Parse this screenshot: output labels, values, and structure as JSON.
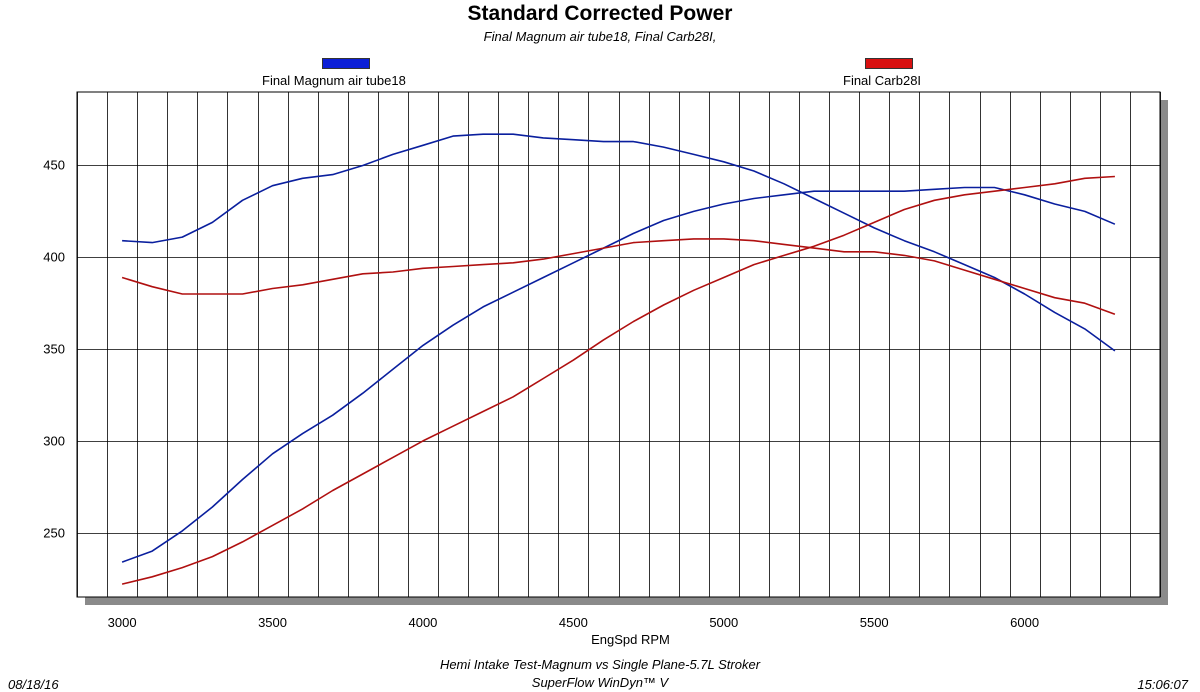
{
  "chart_data": {
    "type": "line",
    "title": "Standard Corrected Power",
    "subtitle": "Final Magnum air tube18, Final Carb28I,",
    "xlabel": "EngSpd RPM",
    "ylabel": "",
    "xlim": [
      2850,
      6450
    ],
    "ylim": [
      215,
      490
    ],
    "x_ticks": [
      3000,
      3500,
      4000,
      4500,
      5000,
      5500,
      6000
    ],
    "y_ticks": [
      250,
      300,
      350,
      400,
      450
    ],
    "x_gridlines": [
      2850,
      2950,
      3050,
      3150,
      3250,
      3350,
      3450,
      3550,
      3650,
      3750,
      3850,
      3950,
      4050,
      4150,
      4250,
      4350,
      4450,
      4550,
      4650,
      4750,
      4850,
      4950,
      5050,
      5150,
      5250,
      5350,
      5450,
      5550,
      5650,
      5750,
      5850,
      5950,
      6050,
      6150,
      6250,
      6350,
      6450
    ],
    "x": [
      3000,
      3100,
      3200,
      3300,
      3400,
      3500,
      3600,
      3700,
      3800,
      3900,
      4000,
      4100,
      4200,
      4300,
      4400,
      4500,
      4600,
      4700,
      4800,
      4900,
      5000,
      5100,
      5200,
      5300,
      5400,
      5500,
      5600,
      5700,
      5800,
      5900,
      6000,
      6100,
      6200,
      6300
    ],
    "series": [
      {
        "name": "Final Magnum air tube18",
        "legend": "Final Magnum air tube18",
        "color": "#0a1f9e",
        "legend_color": "#0c1fd6",
        "values": [
          409,
          408,
          411,
          419,
          431,
          439,
          443,
          445,
          450,
          456,
          461,
          466,
          467,
          467,
          465,
          464,
          463,
          463,
          460,
          456,
          452,
          447,
          440,
          432,
          424,
          416,
          409,
          403,
          396,
          389,
          380,
          370,
          361,
          349
        ]
      },
      {
        "name": "Final Magnum air tube18 (lower curve)",
        "color": "#0a1f9e",
        "values": [
          234,
          240,
          251,
          264,
          279,
          293,
          304,
          314,
          326,
          339,
          352,
          363,
          373,
          381,
          389,
          397,
          405,
          413,
          420,
          425,
          429,
          432,
          434,
          436,
          436,
          436,
          436,
          437,
          438,
          438,
          434,
          429,
          425,
          418
        ]
      },
      {
        "name": "Final Carb28I",
        "legend": "Final Carb28I",
        "color": "#b01010",
        "legend_color": "#d81010",
        "values": [
          389,
          384,
          380,
          380,
          380,
          383,
          385,
          388,
          391,
          392,
          394,
          395,
          396,
          397,
          399,
          402,
          405,
          408,
          409,
          410,
          410,
          409,
          407,
          405,
          403,
          403,
          401,
          398,
          393,
          388,
          383,
          378,
          375,
          369
        ]
      },
      {
        "name": "Final Carb28I (lower curve)",
        "color": "#b01010",
        "values": [
          222,
          226,
          231,
          237,
          245,
          254,
          263,
          273,
          282,
          291,
          300,
          308,
          316,
          324,
          334,
          344,
          355,
          365,
          374,
          382,
          389,
          396,
          401,
          406,
          412,
          419,
          426,
          431,
          434,
          436,
          438,
          440,
          443,
          444
        ]
      }
    ]
  },
  "footer": {
    "date": "08/18/16",
    "time": "15:06:07",
    "description": "Hemi Intake Test-Magnum vs Single Plane-5.7L Stroker",
    "software": "SuperFlow WinDyn™ V"
  }
}
